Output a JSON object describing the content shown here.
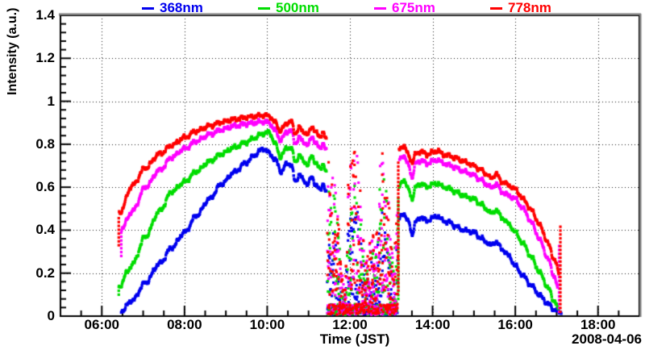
{
  "chart_data": {
    "type": "scatter",
    "title": "",
    "xlabel": "Time (JST)",
    "ylabel": "Intensity (a.u.)",
    "date_label": "2008-04-06",
    "legend_position": "top",
    "grid": "dotted-major",
    "x_axis": {
      "unit": "hours JST",
      "min": 5,
      "max": 19,
      "minor_step": 0.5,
      "major_ticks": [
        6,
        8,
        10,
        12,
        14,
        16,
        18
      ],
      "tick_labels": [
        "06:00",
        "08:00",
        "10:00",
        "12:00",
        "14:00",
        "16:00",
        "18:00"
      ]
    },
    "y_axis": {
      "min": 0,
      "max": 1.4,
      "minor_step": 0.04,
      "major_ticks": [
        0,
        0.2,
        0.4,
        0.6,
        0.8,
        1.0,
        1.2,
        1.4
      ],
      "tick_labels": [
        "0",
        "0.2",
        "0.4",
        "0.6",
        "0.8",
        "1",
        "1.2",
        "1.4"
      ]
    },
    "grid_x_values": [
      6,
      8,
      10,
      12,
      14,
      16,
      18
    ],
    "grid_y_values": [
      0.2,
      0.4,
      0.6,
      0.8,
      1.0,
      1.2
    ],
    "series": [
      {
        "name": "368nm",
        "color": "#0000ee",
        "cloud_factor": 0.62,
        "segments": [
          [
            [
              6.47,
              0.025
            ],
            [
              6.75,
              0.075
            ],
            [
              7.05,
              0.155
            ],
            [
              7.4,
              0.245
            ],
            [
              7.7,
              0.32
            ],
            [
              8.0,
              0.39
            ],
            [
              8.3,
              0.47
            ],
            [
              8.6,
              0.545
            ],
            [
              8.9,
              0.615
            ],
            [
              9.2,
              0.67
            ],
            [
              9.5,
              0.715
            ],
            [
              9.7,
              0.75
            ],
            [
              9.9,
              0.78
            ],
            [
              10.05,
              0.76
            ],
            [
              10.2,
              0.725
            ],
            [
              10.35,
              0.67
            ],
            [
              10.48,
              0.715
            ],
            [
              10.58,
              0.7
            ],
            [
              10.68,
              0.63
            ],
            [
              10.78,
              0.655
            ],
            [
              10.88,
              0.635
            ],
            [
              10.98,
              0.61
            ],
            [
              11.08,
              0.65
            ],
            [
              11.18,
              0.605
            ],
            [
              11.28,
              0.59
            ],
            [
              11.35,
              0.615
            ],
            [
              11.43,
              0.57
            ]
          ],
          [
            [
              13.19,
              0.455
            ],
            [
              13.3,
              0.478
            ],
            [
              13.42,
              0.437
            ],
            [
              13.5,
              0.383
            ],
            [
              13.6,
              0.44
            ],
            [
              13.72,
              0.462
            ],
            [
              13.85,
              0.443
            ],
            [
              14.0,
              0.456
            ],
            [
              14.12,
              0.466
            ],
            [
              14.25,
              0.443
            ],
            [
              14.4,
              0.437
            ],
            [
              14.55,
              0.42
            ],
            [
              14.7,
              0.403
            ],
            [
              14.85,
              0.396
            ],
            [
              15.0,
              0.39
            ],
            [
              15.15,
              0.366
            ],
            [
              15.3,
              0.345
            ],
            [
              15.42,
              0.329
            ],
            [
              15.53,
              0.347
            ],
            [
              15.68,
              0.312
            ],
            [
              15.85,
              0.28
            ],
            [
              16.0,
              0.232
            ],
            [
              16.2,
              0.186
            ],
            [
              16.4,
              0.14
            ],
            [
              16.6,
              0.095
            ],
            [
              16.8,
              0.055
            ],
            [
              16.95,
              0.03
            ],
            [
              17.05,
              0.02
            ],
            [
              17.12,
              0.018
            ]
          ]
        ],
        "tails": []
      },
      {
        "name": "500nm",
        "color": "#00dd00",
        "cloud_factor": 0.84,
        "segments": [
          [
            [
              6.42,
              0.13
            ],
            [
              6.6,
              0.2
            ],
            [
              6.75,
              0.245
            ],
            [
              7.05,
              0.37
            ],
            [
              7.4,
              0.49
            ],
            [
              7.7,
              0.58
            ],
            [
              8.0,
              0.625
            ],
            [
              8.3,
              0.675
            ],
            [
              8.6,
              0.72
            ],
            [
              8.9,
              0.755
            ],
            [
              9.2,
              0.785
            ],
            [
              9.5,
              0.81
            ],
            [
              9.7,
              0.83
            ],
            [
              9.9,
              0.85
            ],
            [
              10.05,
              0.855
            ],
            [
              10.2,
              0.8
            ],
            [
              10.32,
              0.74
            ],
            [
              10.48,
              0.785
            ],
            [
              10.58,
              0.78
            ],
            [
              10.68,
              0.72
            ],
            [
              10.78,
              0.745
            ],
            [
              10.88,
              0.725
            ],
            [
              10.98,
              0.7
            ],
            [
              11.08,
              0.75
            ],
            [
              11.18,
              0.705
            ],
            [
              11.28,
              0.69
            ],
            [
              11.35,
              0.705
            ],
            [
              11.43,
              0.665
            ]
          ],
          [
            [
              13.19,
              0.6
            ],
            [
              13.3,
              0.637
            ],
            [
              13.42,
              0.588
            ],
            [
              13.5,
              0.548
            ],
            [
              13.6,
              0.602
            ],
            [
              13.72,
              0.617
            ],
            [
              13.85,
              0.602
            ],
            [
              14.0,
              0.612
            ],
            [
              14.12,
              0.618
            ],
            [
              14.25,
              0.602
            ],
            [
              14.4,
              0.594
            ],
            [
              14.55,
              0.58
            ],
            [
              14.7,
              0.565
            ],
            [
              14.85,
              0.553
            ],
            [
              15.0,
              0.545
            ],
            [
              15.15,
              0.523
            ],
            [
              15.3,
              0.5
            ],
            [
              15.42,
              0.477
            ],
            [
              15.53,
              0.495
            ],
            [
              15.68,
              0.458
            ],
            [
              15.85,
              0.428
            ],
            [
              16.0,
              0.39
            ],
            [
              16.2,
              0.335
            ],
            [
              16.4,
              0.27
            ],
            [
              16.6,
              0.2
            ],
            [
              16.8,
              0.128
            ],
            [
              16.95,
              0.068
            ],
            [
              17.05,
              0.028
            ]
          ]
        ],
        "tails": [
          {
            "t": 6.41,
            "from": 0.1,
            "to": 0.14
          },
          {
            "t": 13.17,
            "from": 0.08,
            "to": 0.55
          }
        ]
      },
      {
        "name": "675nm",
        "color": "#ff00ff",
        "cloud_factor": 0.94,
        "segments": [
          [
            [
              6.48,
              0.41
            ],
            [
              6.75,
              0.49
            ],
            [
              7.05,
              0.6
            ],
            [
              7.4,
              0.68
            ],
            [
              7.7,
              0.74
            ],
            [
              8.0,
              0.78
            ],
            [
              8.3,
              0.815
            ],
            [
              8.6,
              0.845
            ],
            [
              8.9,
              0.868
            ],
            [
              9.2,
              0.885
            ],
            [
              9.5,
              0.895
            ],
            [
              9.7,
              0.9
            ],
            [
              9.9,
              0.905
            ],
            [
              10.05,
              0.9
            ],
            [
              10.2,
              0.862
            ],
            [
              10.32,
              0.818
            ],
            [
              10.48,
              0.858
            ],
            [
              10.58,
              0.862
            ],
            [
              10.68,
              0.805
            ],
            [
              10.78,
              0.828
            ],
            [
              10.88,
              0.812
            ],
            [
              10.98,
              0.792
            ],
            [
              11.08,
              0.838
            ],
            [
              11.18,
              0.8
            ],
            [
              11.28,
              0.785
            ],
            [
              11.35,
              0.8
            ],
            [
              11.43,
              0.77
            ]
          ],
          [
            [
              13.2,
              0.73
            ],
            [
              13.3,
              0.748
            ],
            [
              13.42,
              0.7
            ],
            [
              13.5,
              0.648
            ],
            [
              13.6,
              0.712
            ],
            [
              13.72,
              0.725
            ],
            [
              13.85,
              0.71
            ],
            [
              14.0,
              0.72
            ],
            [
              14.12,
              0.727
            ],
            [
              14.25,
              0.712
            ],
            [
              14.4,
              0.703
            ],
            [
              14.55,
              0.692
            ],
            [
              14.7,
              0.678
            ],
            [
              14.85,
              0.667
            ],
            [
              15.0,
              0.655
            ],
            [
              15.15,
              0.636
            ],
            [
              15.3,
              0.615
            ],
            [
              15.42,
              0.595
            ],
            [
              15.53,
              0.617
            ],
            [
              15.68,
              0.578
            ],
            [
              15.85,
              0.56
            ],
            [
              16.0,
              0.545
            ],
            [
              16.2,
              0.497
            ],
            [
              16.4,
              0.432
            ],
            [
              16.6,
              0.352
            ],
            [
              16.8,
              0.262
            ],
            [
              16.95,
              0.18
            ],
            [
              17.03,
              0.125
            ]
          ]
        ],
        "tails": [
          {
            "t": 6.47,
            "from": 0.28,
            "to": 0.4
          },
          {
            "t": 17.06,
            "from": 0.02,
            "to": 0.33
          }
        ]
      },
      {
        "name": "778nm",
        "color": "#ff0000",
        "cloud_factor": 1.0,
        "segments": [
          [
            [
              6.42,
              0.48
            ],
            [
              6.75,
              0.61
            ],
            [
              7.05,
              0.69
            ],
            [
              7.4,
              0.755
            ],
            [
              7.7,
              0.795
            ],
            [
              8.0,
              0.832
            ],
            [
              8.3,
              0.862
            ],
            [
              8.6,
              0.885
            ],
            [
              8.9,
              0.903
            ],
            [
              9.2,
              0.916
            ],
            [
              9.5,
              0.925
            ],
            [
              9.7,
              0.93
            ],
            [
              9.9,
              0.935
            ],
            [
              10.05,
              0.932
            ],
            [
              10.2,
              0.9
            ],
            [
              10.32,
              0.862
            ],
            [
              10.48,
              0.9
            ],
            [
              10.58,
              0.905
            ],
            [
              10.68,
              0.852
            ],
            [
              10.78,
              0.875
            ],
            [
              10.88,
              0.86
            ],
            [
              10.98,
              0.842
            ],
            [
              11.08,
              0.885
            ],
            [
              11.18,
              0.852
            ],
            [
              11.28,
              0.838
            ],
            [
              11.35,
              0.852
            ],
            [
              11.43,
              0.822
            ]
          ],
          [
            [
              13.19,
              0.775
            ],
            [
              13.3,
              0.795
            ],
            [
              13.42,
              0.748
            ],
            [
              13.5,
              0.718
            ],
            [
              13.6,
              0.755
            ],
            [
              13.72,
              0.768
            ],
            [
              13.85,
              0.752
            ],
            [
              14.0,
              0.762
            ],
            [
              14.12,
              0.77
            ],
            [
              14.25,
              0.752
            ],
            [
              14.4,
              0.747
            ],
            [
              14.55,
              0.737
            ],
            [
              14.7,
              0.724
            ],
            [
              14.85,
              0.713
            ],
            [
              15.0,
              0.7
            ],
            [
              15.15,
              0.683
            ],
            [
              15.3,
              0.662
            ],
            [
              15.42,
              0.64
            ],
            [
              15.53,
              0.662
            ],
            [
              15.68,
              0.625
            ],
            [
              15.85,
              0.608
            ],
            [
              16.0,
              0.59
            ],
            [
              16.2,
              0.543
            ],
            [
              16.4,
              0.49
            ],
            [
              16.6,
              0.42
            ],
            [
              16.8,
              0.335
            ],
            [
              16.95,
              0.26
            ],
            [
              17.06,
              0.2
            ]
          ]
        ],
        "tails": [
          {
            "t": 6.41,
            "from": 0.33,
            "to": 0.46
          },
          {
            "t": 13.17,
            "from": 0.12,
            "to": 0.72
          },
          {
            "t": 17.09,
            "from": 0.02,
            "to": 0.42
          }
        ]
      }
    ],
    "cloud_dropout": {
      "start": 11.45,
      "end": 13.16,
      "near_zero_fraction": 0.45,
      "max_envelope": [
        [
          11.45,
          0.8
        ],
        [
          11.52,
          0.66
        ],
        [
          11.62,
          0.72
        ],
        [
          11.72,
          0.5
        ],
        [
          11.8,
          0.22
        ],
        [
          11.88,
          0.12
        ],
        [
          11.95,
          0.65
        ],
        [
          12.02,
          0.82
        ],
        [
          12.1,
          0.8
        ],
        [
          12.18,
          0.82
        ],
        [
          12.25,
          0.6
        ],
        [
          12.32,
          0.38
        ],
        [
          12.42,
          0.3
        ],
        [
          12.52,
          0.42
        ],
        [
          12.6,
          0.35
        ],
        [
          12.68,
          0.6
        ],
        [
          12.76,
          0.82
        ],
        [
          12.84,
          0.78
        ],
        [
          12.92,
          0.6
        ],
        [
          13.0,
          0.38
        ],
        [
          13.06,
          0.28
        ],
        [
          13.12,
          0.5
        ],
        [
          13.16,
          0.65
        ]
      ]
    }
  },
  "legend": {
    "items": [
      {
        "label": "368nm",
        "color": "#0000ee"
      },
      {
        "label": "500nm",
        "color": "#00dd00"
      },
      {
        "label": "675nm",
        "color": "#ff00ff"
      },
      {
        "label": "778nm",
        "color": "#ff0000"
      }
    ]
  }
}
